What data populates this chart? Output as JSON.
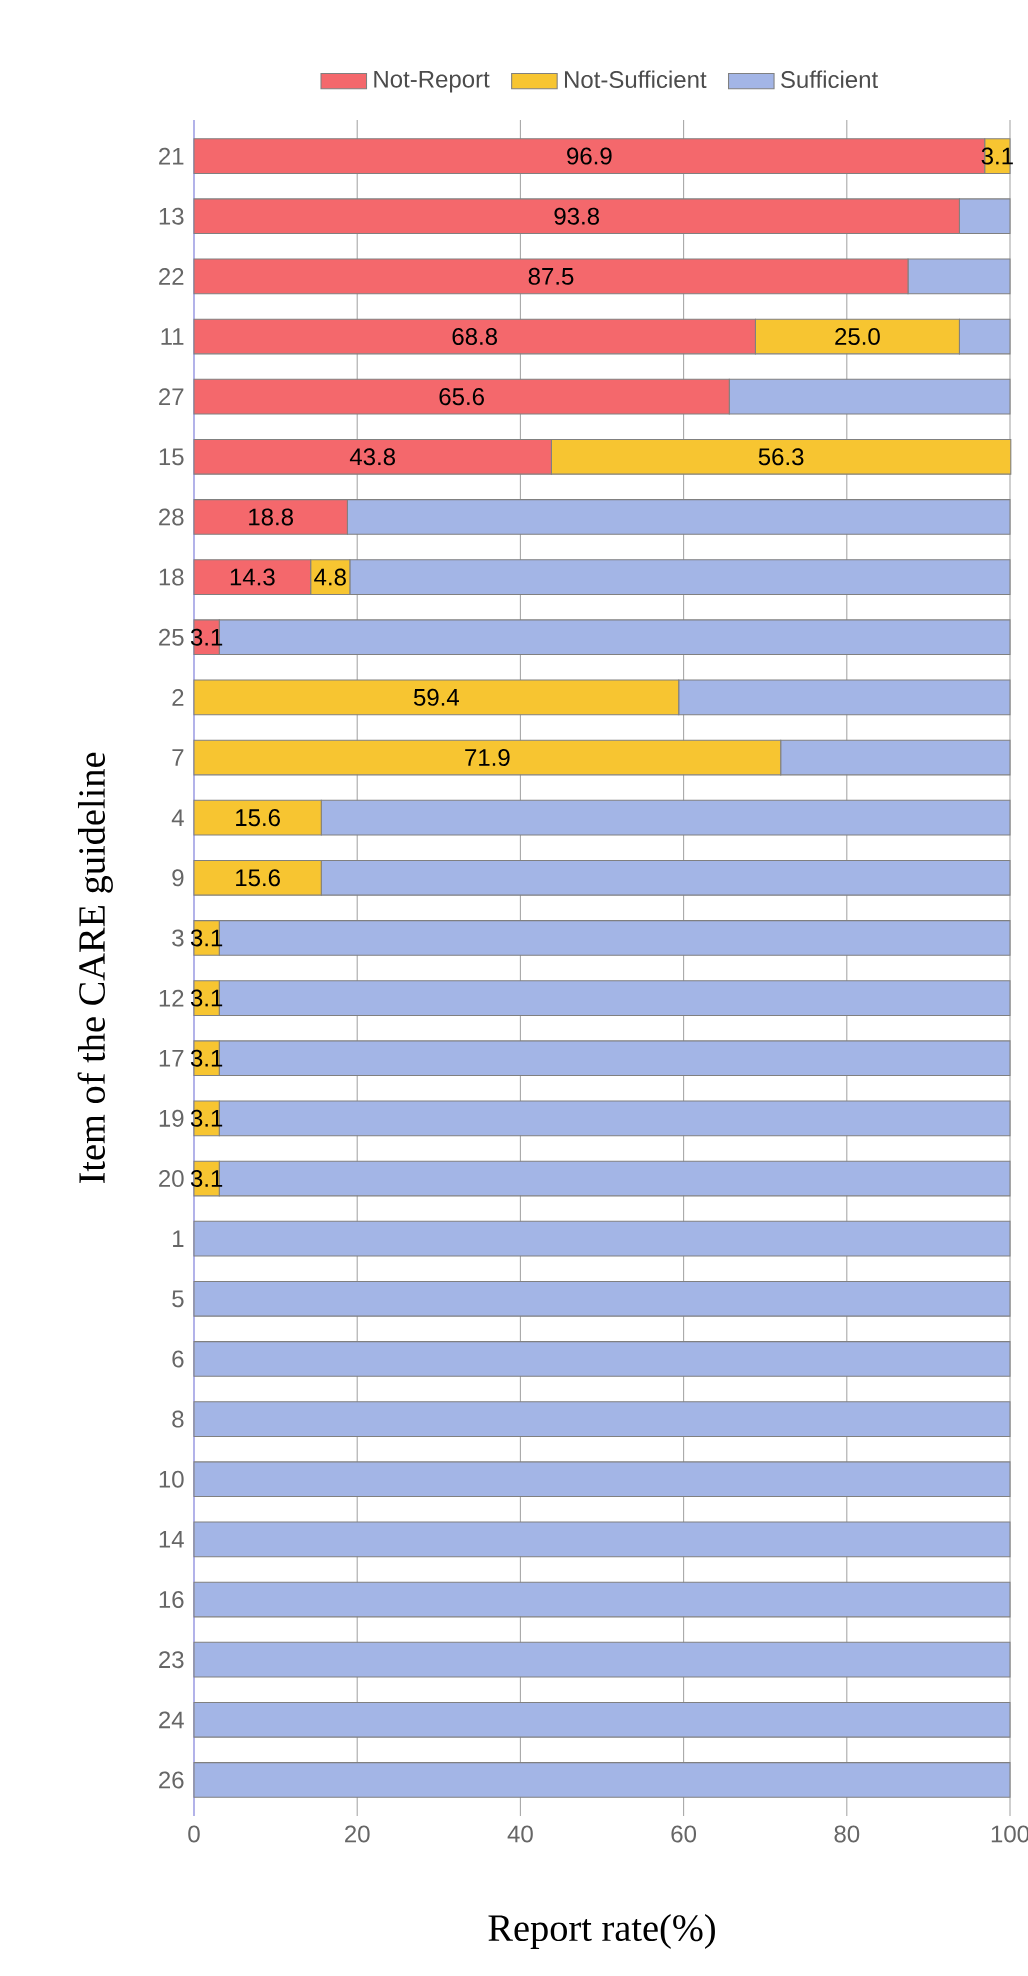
{
  "chart_data": {
    "type": "bar",
    "orientation": "horizontal",
    "stacked": true,
    "xlabel": "Report rate(%)",
    "ylabel": "Item of the CARE guideline",
    "categories": [
      "21",
      "13",
      "22",
      "11",
      "27",
      "15",
      "28",
      "18",
      "25",
      "2",
      "7",
      "4",
      "9",
      "3",
      "12",
      "17",
      "19",
      "20",
      "1",
      "5",
      "6",
      "8",
      "10",
      "14",
      "16",
      "23",
      "24",
      "26"
    ],
    "series": [
      {
        "name": "Not-Report",
        "color": "#f4686c",
        "values": [
          96.9,
          93.8,
          87.5,
          68.8,
          65.6,
          43.8,
          18.8,
          14.3,
          3.1,
          0,
          0,
          0,
          0,
          0,
          0,
          0,
          0,
          0,
          0,
          0,
          0,
          0,
          0,
          0,
          0,
          0,
          0,
          0
        ],
        "value_labels": [
          "96.9",
          "93.8",
          "87.5",
          "68.8",
          "65.6",
          "43.8",
          "18.8",
          "14.3",
          "3.1",
          null,
          null,
          null,
          null,
          null,
          null,
          null,
          null,
          null,
          null,
          null,
          null,
          null,
          null,
          null,
          null,
          null,
          null,
          null
        ]
      },
      {
        "name": "Not-Sufficient",
        "color": "#f7c531",
        "values": [
          3.1,
          0,
          0,
          25.0,
          0,
          56.3,
          0,
          4.8,
          0,
          59.4,
          71.9,
          15.6,
          15.6,
          3.1,
          3.1,
          3.1,
          3.1,
          3.1,
          0,
          0,
          0,
          0,
          0,
          0,
          0,
          0,
          0,
          0
        ],
        "value_labels": [
          "3.1",
          null,
          null,
          "25.0",
          null,
          "56.3",
          null,
          "4.8",
          null,
          "59.4",
          "71.9",
          "15.6",
          "15.6",
          "3.1",
          "3.1",
          "3.1",
          "3.1",
          "3.1",
          null,
          null,
          null,
          null,
          null,
          null,
          null,
          null,
          null,
          null
        ]
      },
      {
        "name": "Sufficient",
        "color": "#a3b5e6",
        "values": [
          0,
          6.2,
          12.5,
          6.2,
          34.4,
          0,
          81.2,
          80.9,
          96.9,
          40.6,
          28.1,
          84.4,
          84.4,
          96.9,
          96.9,
          96.9,
          96.9,
          96.9,
          100,
          100,
          100,
          100,
          100,
          100,
          100,
          100,
          100,
          100
        ]
      }
    ],
    "xlim": [
      0,
      100
    ],
    "xticks": [
      0,
      20,
      40,
      60,
      80,
      100
    ],
    "grid": "x",
    "legend": "top"
  }
}
